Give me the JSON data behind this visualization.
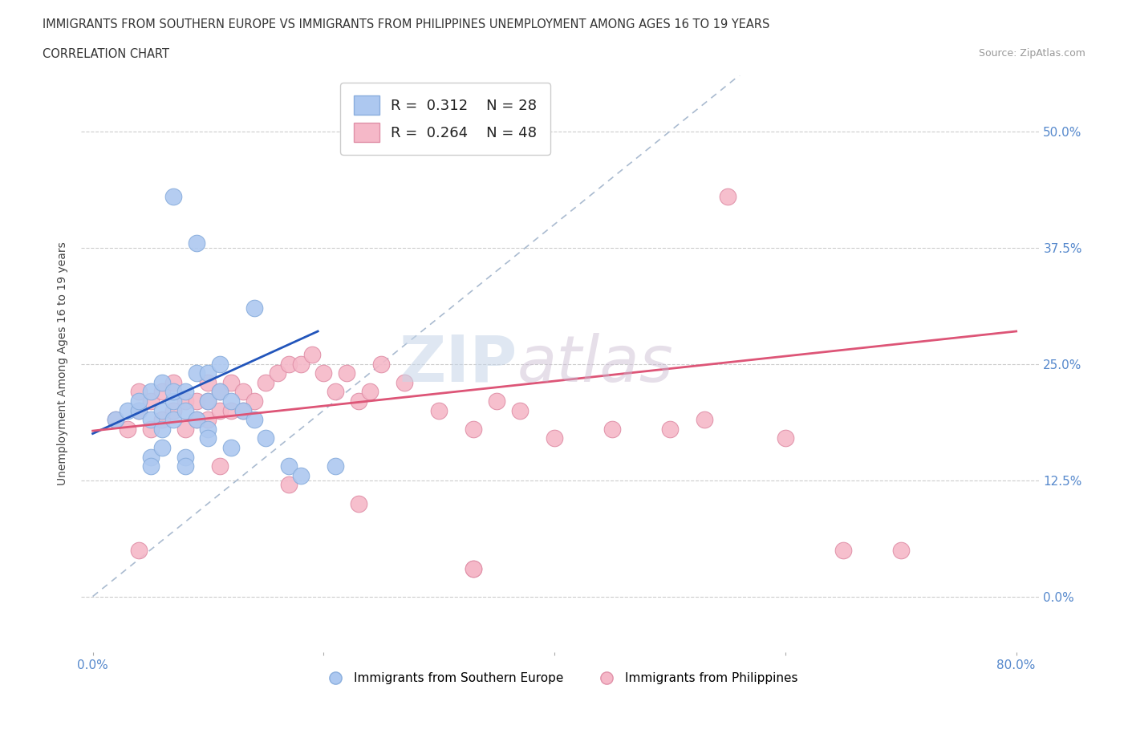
{
  "title_line1": "IMMIGRANTS FROM SOUTHERN EUROPE VS IMMIGRANTS FROM PHILIPPINES UNEMPLOYMENT AMONG AGES 16 TO 19 YEARS",
  "title_line2": "CORRELATION CHART",
  "source": "Source: ZipAtlas.com",
  "ylabel": "Unemployment Among Ages 16 to 19 years",
  "xlim": [
    -0.01,
    0.82
  ],
  "ylim": [
    -0.06,
    0.56
  ],
  "xticks": [
    0.0,
    0.2,
    0.4,
    0.6,
    0.8
  ],
  "xtick_labels": [
    "0.0%",
    "",
    "",
    "",
    "80.0%"
  ],
  "yticks": [
    0.0,
    0.125,
    0.25,
    0.375,
    0.5
  ],
  "ytick_labels": [
    "0.0%",
    "12.5%",
    "25.0%",
    "37.5%",
    "50.0%"
  ],
  "blue_R": 0.312,
  "blue_N": 28,
  "pink_R": 0.264,
  "pink_N": 48,
  "blue_color": "#adc8f0",
  "blue_edge": "#8aaedd",
  "pink_color": "#f5b8c8",
  "pink_edge": "#e090a8",
  "blue_line_color": "#2255bb",
  "pink_line_color": "#dd5577",
  "diag_color": "#aabbd0",
  "watermark_zip": "ZIP",
  "watermark_atlas": "atlas",
  "blue_line_x": [
    0.0,
    0.195
  ],
  "blue_line_y": [
    0.175,
    0.285
  ],
  "pink_line_x": [
    0.0,
    0.8
  ],
  "pink_line_y": [
    0.178,
    0.285
  ],
  "blue_scatter_x": [
    0.02,
    0.03,
    0.04,
    0.04,
    0.05,
    0.05,
    0.06,
    0.06,
    0.06,
    0.07,
    0.07,
    0.07,
    0.08,
    0.08,
    0.09,
    0.09,
    0.1,
    0.1,
    0.1,
    0.11,
    0.11,
    0.12,
    0.13,
    0.14,
    0.15,
    0.17,
    0.18,
    0.21
  ],
  "blue_scatter_y": [
    0.19,
    0.2,
    0.2,
    0.21,
    0.19,
    0.22,
    0.18,
    0.2,
    0.23,
    0.19,
    0.21,
    0.22,
    0.2,
    0.22,
    0.19,
    0.24,
    0.18,
    0.21,
    0.24,
    0.22,
    0.25,
    0.21,
    0.2,
    0.19,
    0.17,
    0.14,
    0.13,
    0.14
  ],
  "blue_outlier_x": [
    0.07,
    0.09,
    0.14,
    0.05,
    0.06,
    0.08,
    0.1,
    0.12,
    0.05,
    0.08
  ],
  "blue_outlier_y": [
    0.43,
    0.38,
    0.31,
    0.15,
    0.16,
    0.15,
    0.17,
    0.16,
    0.14,
    0.14
  ],
  "pink_scatter_x": [
    0.02,
    0.03,
    0.04,
    0.04,
    0.05,
    0.05,
    0.06,
    0.06,
    0.07,
    0.07,
    0.08,
    0.08,
    0.09,
    0.09,
    0.1,
    0.1,
    0.1,
    0.11,
    0.11,
    0.12,
    0.12,
    0.13,
    0.13,
    0.14,
    0.15,
    0.16,
    0.17,
    0.18,
    0.19,
    0.2,
    0.21,
    0.22,
    0.23,
    0.24,
    0.25,
    0.27,
    0.3,
    0.33,
    0.35,
    0.37,
    0.4,
    0.45,
    0.5,
    0.53,
    0.55,
    0.6,
    0.65,
    0.7
  ],
  "pink_scatter_y": [
    0.19,
    0.18,
    0.2,
    0.22,
    0.18,
    0.21,
    0.19,
    0.22,
    0.2,
    0.23,
    0.18,
    0.21,
    0.19,
    0.21,
    0.19,
    0.21,
    0.23,
    0.2,
    0.22,
    0.2,
    0.23,
    0.2,
    0.22,
    0.21,
    0.23,
    0.24,
    0.25,
    0.25,
    0.26,
    0.24,
    0.22,
    0.24,
    0.21,
    0.22,
    0.25,
    0.23,
    0.2,
    0.18,
    0.21,
    0.2,
    0.17,
    0.18,
    0.18,
    0.19,
    0.43,
    0.17,
    0.05,
    0.05
  ],
  "pink_outlier_x": [
    0.04,
    0.11,
    0.17,
    0.23,
    0.33,
    0.33
  ],
  "pink_outlier_y": [
    0.05,
    0.14,
    0.12,
    0.1,
    0.03,
    0.03
  ]
}
